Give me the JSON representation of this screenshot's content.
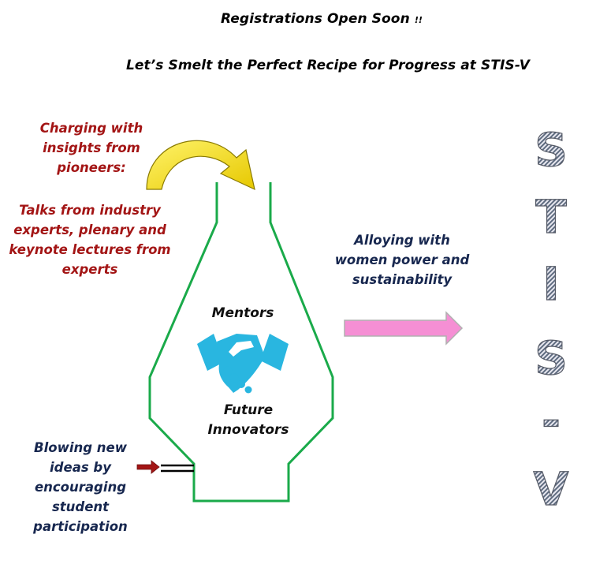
{
  "header": {
    "line1_main": "Registrations Open Soon",
    "line1_suffix": "!!",
    "line2": "Let’s Smelt the Perfect Recipe for Progress at STIS-V"
  },
  "left": {
    "charging": "Charging with insights from pioneers:",
    "talks": "Talks from industry experts, plenary and keynote lectures from experts",
    "blowing": "Blowing new ideas by encouraging student participation"
  },
  "furnace": {
    "mentors": "Mentors",
    "future": "Future Innovators"
  },
  "right": {
    "alloying": "Alloying with women power and sustainability"
  },
  "stis_letters": [
    "S",
    "T",
    "I",
    "S",
    "-",
    "V"
  ],
  "icons": {
    "handshake": "handshake-icon",
    "curved_arrow": "curved-arrow-icon",
    "pink_arrow": "right-arrow-icon",
    "red_arrow": "small-right-arrow-icon"
  },
  "colors": {
    "furnace_outline": "#1aaa4a",
    "red_text": "#a31515",
    "navy_text": "#17274f",
    "curved_arrow": "#f5e60a",
    "pink_arrow": "#f58fd4",
    "handshake": "#29b6e0"
  }
}
